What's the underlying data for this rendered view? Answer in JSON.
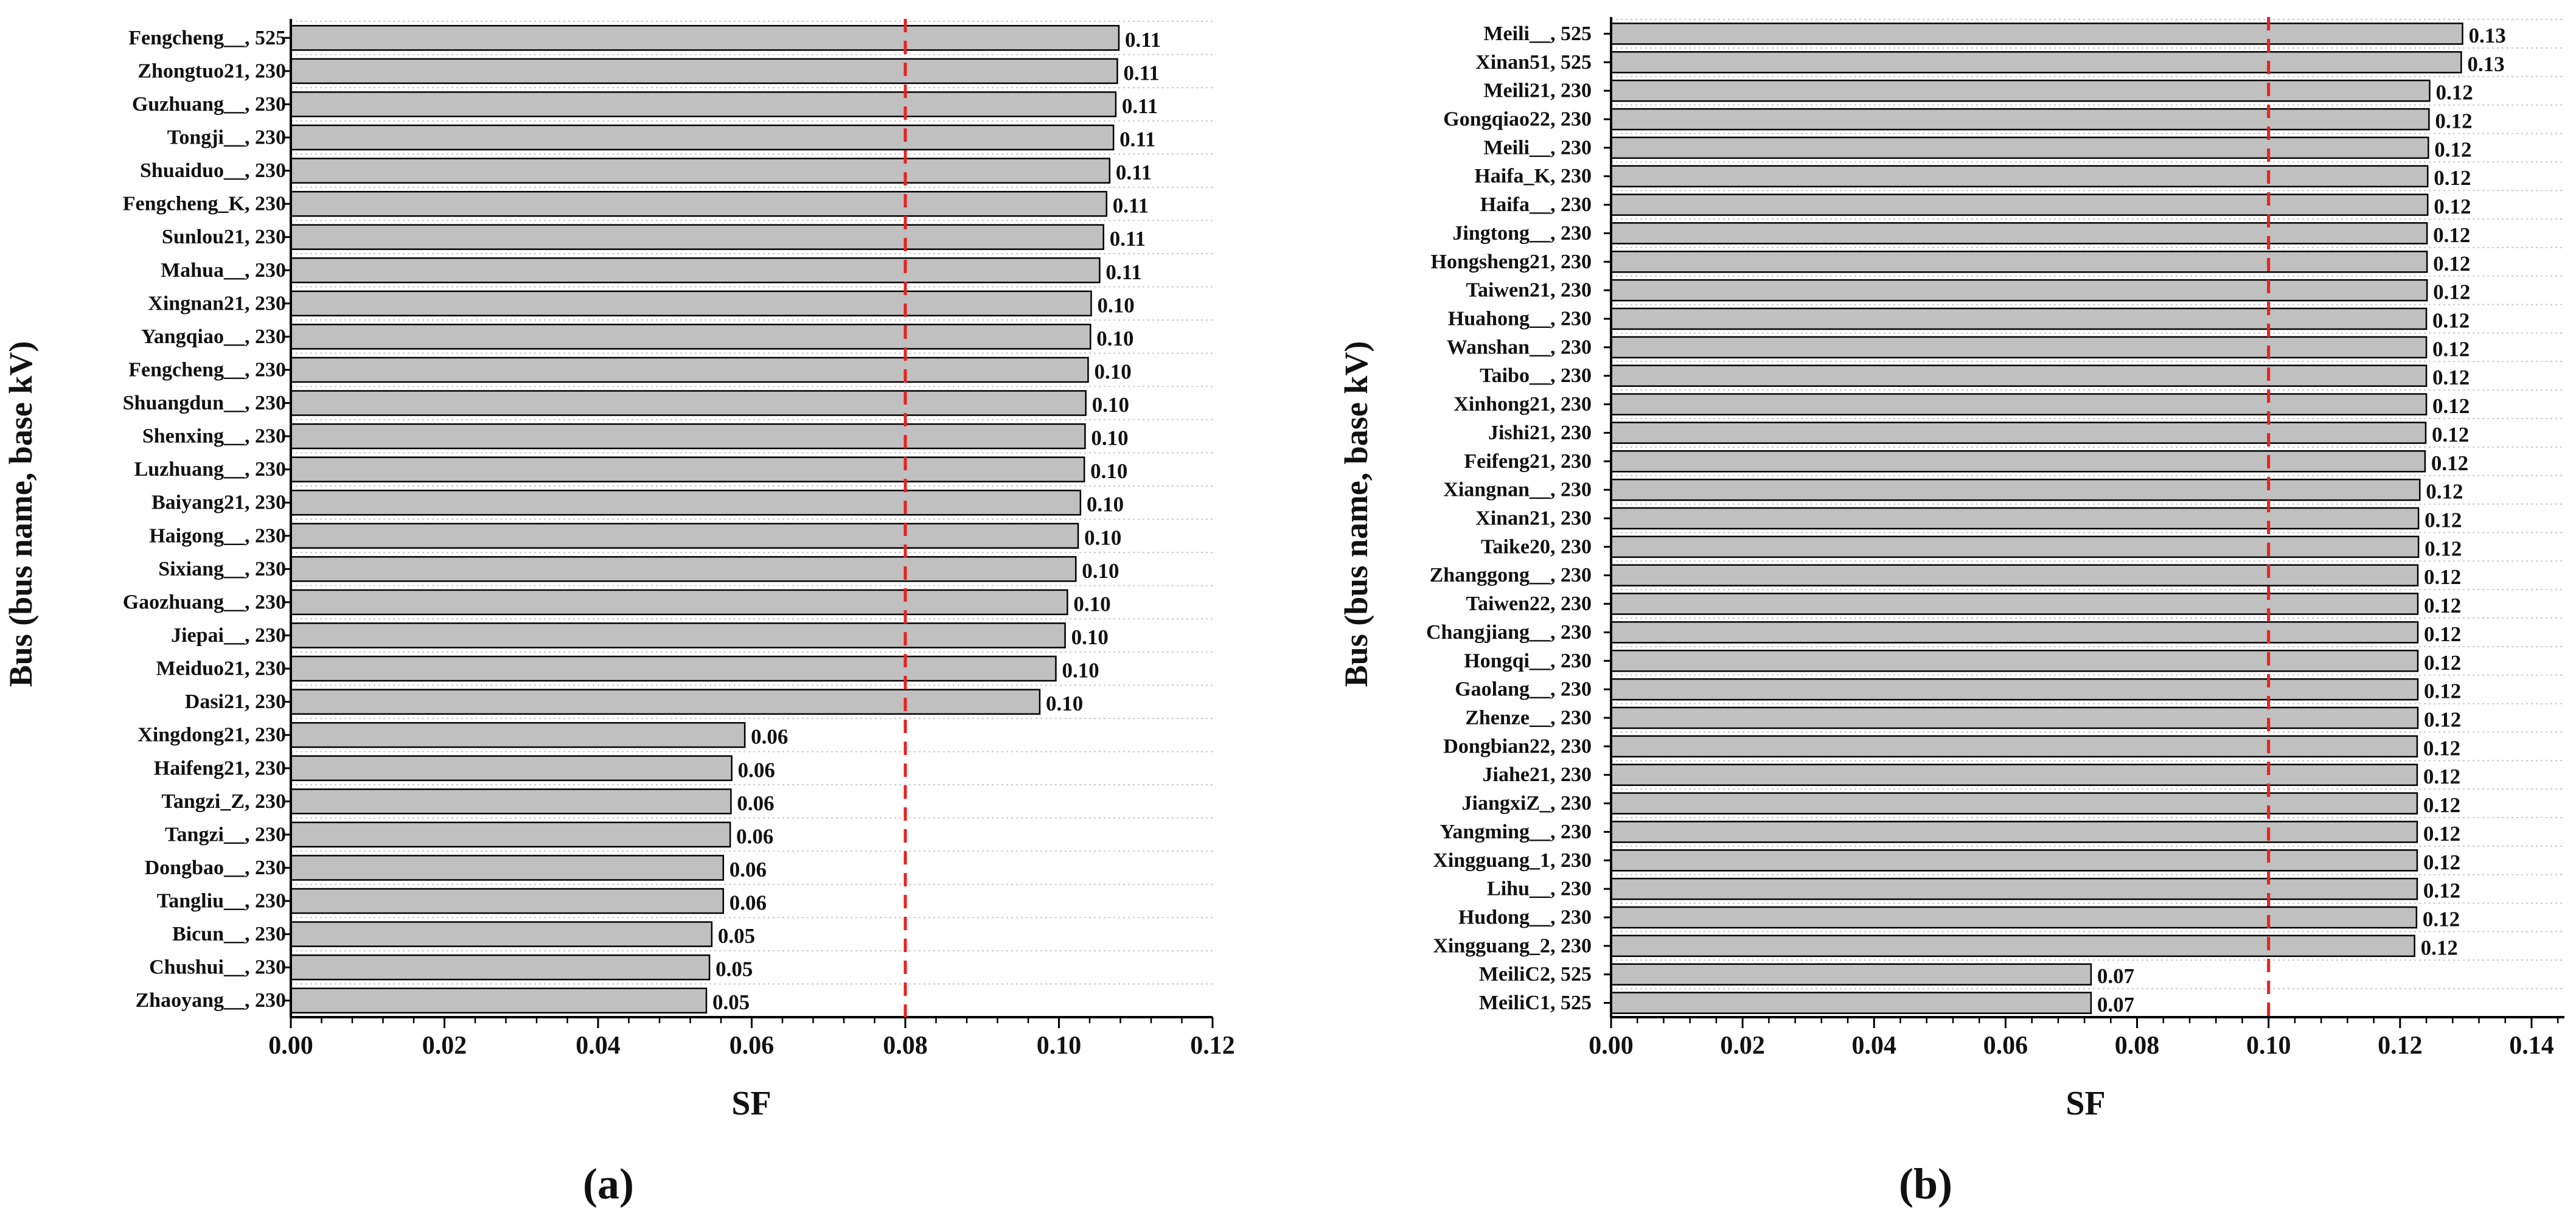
{
  "chart_data": [
    {
      "panel_label": "(a)",
      "type": "bar",
      "orientation": "horizontal",
      "xlabel": "SF",
      "ylabel": "Bus (bus name, base kV)",
      "xlim": [
        0,
        0.12
      ],
      "x_ticks": [
        "0.00",
        "0.02",
        "0.04",
        "0.06",
        "0.08",
        "0.10",
        "0.12"
      ],
      "threshold": 0.08,
      "grid": "horizontal dotted",
      "categories": [
        "Fengcheng__, 525",
        "Zhongtuo21, 230",
        "Guzhuang__, 230",
        "Tongji__, 230",
        "Shuaiduo__, 230",
        "Fengcheng_K, 230",
        "Sunlou21, 230",
        "Mahua__, 230",
        "Xingnan21, 230",
        "Yangqiao__, 230",
        "Fengcheng__, 230",
        "Shuangdun__, 230",
        "Shenxing__, 230",
        "Luzhuang__, 230",
        "Baiyang21, 230",
        "Haigong__, 230",
        "Sixiang__, 230",
        "Gaozhuang__, 230",
        "Jiepai__, 230",
        "Meiduo21, 230",
        "Dasi21, 230",
        "Xingdong21, 230",
        "Haifeng21, 230",
        "Tangzi_Z, 230",
        "Tangzi__, 230",
        "Dongbao__, 230",
        "Tangliu__, 230",
        "Bicun__, 230",
        "Chushui__, 230",
        "Zhaoyang__, 230"
      ],
      "values": [
        0.1078,
        0.1076,
        0.1074,
        0.1071,
        0.1066,
        0.1062,
        0.1058,
        0.1053,
        0.1042,
        0.1041,
        0.1038,
        0.1035,
        0.1034,
        0.1033,
        0.1028,
        0.1025,
        0.1022,
        0.1011,
        0.1008,
        0.0996,
        0.0975,
        0.0591,
        0.0574,
        0.0573,
        0.0572,
        0.0563,
        0.0563,
        0.0548,
        0.0545,
        0.0541
      ],
      "value_labels": [
        "0.11",
        "0.11",
        "0.11",
        "0.11",
        "0.11",
        "0.11",
        "0.11",
        "0.11",
        "0.10",
        "0.10",
        "0.10",
        "0.10",
        "0.10",
        "0.10",
        "0.10",
        "0.10",
        "0.10",
        "0.10",
        "0.10",
        "0.10",
        "0.10",
        "0.06",
        "0.06",
        "0.06",
        "0.06",
        "0.06",
        "0.06",
        "0.05",
        "0.05",
        "0.05"
      ]
    },
    {
      "panel_label": "(b)",
      "type": "bar",
      "orientation": "horizontal",
      "xlabel": "SF",
      "ylabel": "Bus (bus name, base kV)",
      "xlim": [
        0,
        0.145
      ],
      "x_ticks": [
        "0.00",
        "0.02",
        "0.04",
        "0.06",
        "0.08",
        "0.10",
        "0.12",
        "0.14"
      ],
      "threshold": 0.1,
      "grid": "horizontal dotted",
      "categories": [
        "Meili__, 525",
        "Xinan51, 525",
        "Meili21, 230",
        "Gongqiao22, 230",
        "Meili__, 230",
        "Haifa_K, 230",
        "Haifa__, 230",
        "Jingtong__, 230",
        "Hongsheng21, 230",
        "Taiwen21, 230",
        "Huahong__, 230",
        "Wanshan__, 230",
        "Taibo__, 230",
        "Xinhong21, 230",
        "Jishi21, 230",
        "Feifeng21, 230",
        "Xiangnan__, 230",
        "Xinan21, 230",
        "Taike20, 230",
        "Zhanggong__, 230",
        "Taiwen22, 230",
        "Changjiang__, 230",
        "Hongqi__, 230",
        "Gaolang__, 230",
        "Zhenze__, 230",
        "Dongbian22, 230",
        "Jiahe21, 230",
        "JiangxiZ_, 230",
        "Yangming__, 230",
        "Xingguang_1, 230",
        "Lihu__, 230",
        "Hudong__, 230",
        "Xingguang_2, 230",
        "MeiliC2, 525",
        "MeiliC1, 525"
      ],
      "values": [
        0.1295,
        0.1293,
        0.1245,
        0.1244,
        0.1243,
        0.1242,
        0.1242,
        0.1241,
        0.1241,
        0.1241,
        0.124,
        0.124,
        0.124,
        0.124,
        0.1239,
        0.1238,
        0.123,
        0.1228,
        0.1228,
        0.1227,
        0.1227,
        0.1227,
        0.1227,
        0.1227,
        0.1227,
        0.1226,
        0.1226,
        0.1226,
        0.1226,
        0.1226,
        0.1226,
        0.1225,
        0.1222,
        0.073,
        0.073
      ],
      "value_labels": [
        "0.13",
        "0.13",
        "0.12",
        "0.12",
        "0.12",
        "0.12",
        "0.12",
        "0.12",
        "0.12",
        "0.12",
        "0.12",
        "0.12",
        "0.12",
        "0.12",
        "0.12",
        "0.12",
        "0.12",
        "0.12",
        "0.12",
        "0.12",
        "0.12",
        "0.12",
        "0.12",
        "0.12",
        "0.12",
        "0.12",
        "0.12",
        "0.12",
        "0.12",
        "0.12",
        "0.12",
        "0.12",
        "0.12",
        "0.07",
        "0.07"
      ]
    }
  ],
  "colors": {
    "bar_fill": "#c0c0c0",
    "bar_stroke": "#000000",
    "threshold_line": "#e8211d",
    "grid_line": "#c8c8c8",
    "axis": "#000000"
  }
}
